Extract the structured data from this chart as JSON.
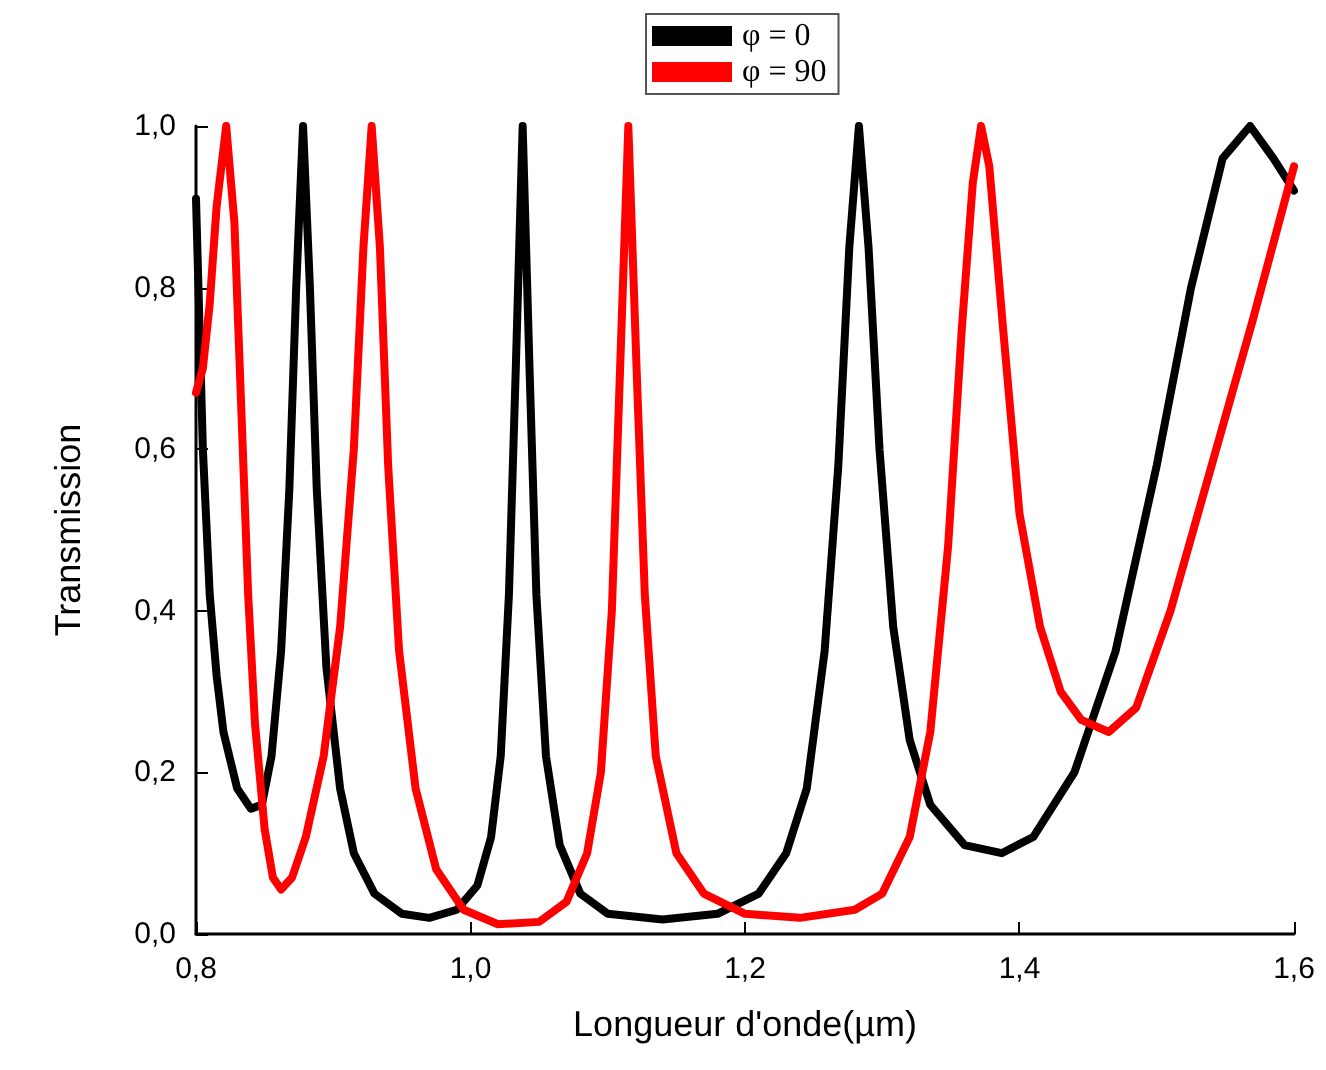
{
  "chart_data": {
    "type": "line",
    "xlabel": "Longueur d'onde(µm)",
    "ylabel": "Transmission",
    "xlim": [
      0.8,
      1.6
    ],
    "xticks": [
      {
        "value": 0.8,
        "label": "0,8"
      },
      {
        "value": 1.0,
        "label": "1,0"
      },
      {
        "value": 1.2,
        "label": "1,2"
      },
      {
        "value": 1.4,
        "label": "1,4"
      },
      {
        "value": 1.6,
        "label": "1,6"
      }
    ],
    "ylim": [
      0,
      1
    ],
    "yticks": [
      {
        "value": 0,
        "label": "0,0"
      },
      {
        "value": 0.2,
        "label": "0,2"
      },
      {
        "value": 0.4,
        "label": "0,4"
      },
      {
        "value": 0.6,
        "label": "0,6"
      },
      {
        "value": 0.8,
        "label": "0,8"
      },
      {
        "value": 1.0,
        "label": "1,0"
      }
    ],
    "grid": false,
    "legend": "top",
    "marker": "none",
    "line_style": "solid",
    "series": [
      {
        "name": "φ = 0",
        "color": "#000000",
        "x": [
          0.8,
          0.805,
          0.81,
          0.815,
          0.82,
          0.83,
          0.84,
          0.848,
          0.855,
          0.862,
          0.868,
          0.873,
          0.878,
          0.883,
          0.888,
          0.895,
          0.905,
          0.915,
          0.93,
          0.95,
          0.97,
          0.99,
          1.005,
          1.015,
          1.022,
          1.028,
          1.033,
          1.038,
          1.043,
          1.048,
          1.055,
          1.065,
          1.08,
          1.1,
          1.14,
          1.18,
          1.21,
          1.23,
          1.245,
          1.258,
          1.268,
          1.276,
          1.283,
          1.29,
          1.298,
          1.308,
          1.32,
          1.335,
          1.36,
          1.387,
          1.41,
          1.44,
          1.47,
          1.5,
          1.525,
          1.548,
          1.568,
          1.585,
          1.6
        ],
        "values": [
          0.91,
          0.6,
          0.42,
          0.32,
          0.25,
          0.18,
          0.155,
          0.16,
          0.22,
          0.35,
          0.55,
          0.8,
          1.0,
          0.8,
          0.55,
          0.33,
          0.18,
          0.1,
          0.05,
          0.025,
          0.02,
          0.03,
          0.06,
          0.12,
          0.22,
          0.42,
          0.7,
          1.0,
          0.7,
          0.42,
          0.22,
          0.11,
          0.05,
          0.025,
          0.018,
          0.025,
          0.05,
          0.1,
          0.18,
          0.35,
          0.58,
          0.85,
          1.0,
          0.85,
          0.6,
          0.38,
          0.24,
          0.16,
          0.11,
          0.1,
          0.12,
          0.2,
          0.35,
          0.58,
          0.8,
          0.96,
          1.0,
          0.96,
          0.92
        ]
      },
      {
        "name": "φ = 90",
        "color": "#ff0000",
        "x": [
          0.8,
          0.805,
          0.81,
          0.815,
          0.822,
          0.828,
          0.833,
          0.838,
          0.843,
          0.85,
          0.856,
          0.862,
          0.87,
          0.88,
          0.893,
          0.905,
          0.915,
          0.922,
          0.928,
          0.934,
          0.94,
          0.948,
          0.96,
          0.975,
          0.995,
          1.02,
          1.05,
          1.07,
          1.085,
          1.095,
          1.103,
          1.109,
          1.115,
          1.121,
          1.127,
          1.135,
          1.15,
          1.17,
          1.2,
          1.24,
          1.28,
          1.3,
          1.32,
          1.335,
          1.348,
          1.358,
          1.366,
          1.372,
          1.378,
          1.388,
          1.4,
          1.415,
          1.43,
          1.445,
          1.465,
          1.485,
          1.51,
          1.54,
          1.57,
          1.6
        ],
        "values": [
          0.67,
          0.7,
          0.78,
          0.9,
          1.0,
          0.88,
          0.65,
          0.42,
          0.26,
          0.13,
          0.07,
          0.055,
          0.07,
          0.12,
          0.22,
          0.38,
          0.6,
          0.85,
          1.0,
          0.85,
          0.58,
          0.35,
          0.18,
          0.08,
          0.03,
          0.012,
          0.015,
          0.04,
          0.1,
          0.2,
          0.4,
          0.7,
          1.0,
          0.7,
          0.42,
          0.22,
          0.1,
          0.05,
          0.025,
          0.02,
          0.03,
          0.05,
          0.12,
          0.25,
          0.48,
          0.75,
          0.93,
          1.0,
          0.95,
          0.75,
          0.52,
          0.38,
          0.3,
          0.265,
          0.25,
          0.28,
          0.4,
          0.58,
          0.76,
          0.95
        ]
      }
    ]
  }
}
